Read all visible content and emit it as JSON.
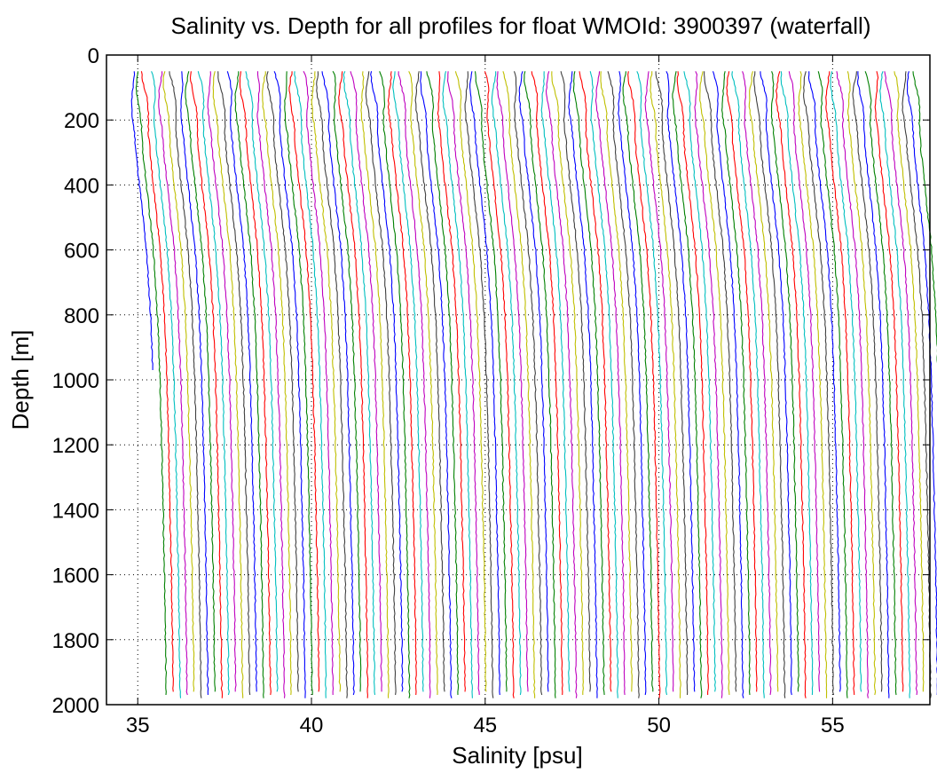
{
  "chart_data": {
    "type": "line",
    "title": "Salinity vs. Depth for all profiles for float WMOId: 3900397 (waterfall)",
    "xlabel": "Salinity [psu]",
    "ylabel": "Depth [m]",
    "xlim": [
      34.1,
      57.8
    ],
    "ylim": [
      0,
      2000
    ],
    "y_reversed": true,
    "x_ticks": [
      35,
      40,
      45,
      50,
      55
    ],
    "y_ticks": [
      0,
      200,
      400,
      600,
      800,
      1000,
      1200,
      1400,
      1600,
      1800,
      2000
    ],
    "grid": "dotted",
    "legend": "none",
    "waterfall_offset_per_profile": 0.2,
    "profile_count": 114,
    "first_profile_surface_salinity": 34.8,
    "color_cycle": [
      "#0000ff",
      "#008000",
      "#ff0000",
      "#00bfbf",
      "#bf00bf",
      "#bfbf00",
      "#404040"
    ],
    "reference_profile": {
      "depth": [
        50,
        100,
        150,
        200,
        300,
        400,
        500,
        600,
        800,
        1000,
        1200,
        1400,
        1600,
        1800,
        1980
      ],
      "salinity_offset": [
        0.0,
        0.02,
        0.05,
        0.08,
        0.15,
        0.25,
        0.35,
        0.45,
        0.57,
        0.64,
        0.69,
        0.73,
        0.77,
        0.8,
        0.82
      ]
    },
    "first_profile_max_depth": 970
  }
}
